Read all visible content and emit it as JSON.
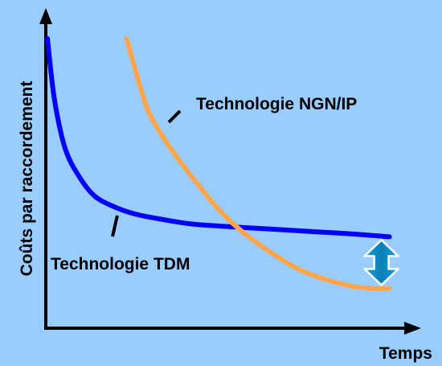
{
  "chart_data": {
    "type": "line",
    "title": "",
    "xlabel": "Temps",
    "ylabel": "Coûts par raccordement",
    "grid": false,
    "legend": "none",
    "series": [
      {
        "name": "Technologie TDM",
        "color": "#0000ff",
        "points": [
          [
            0.02,
            1.0
          ],
          [
            0.04,
            0.76
          ],
          [
            0.07,
            0.57
          ],
          [
            0.11,
            0.46
          ],
          [
            0.15,
            0.39
          ],
          [
            0.2,
            0.35
          ],
          [
            0.26,
            0.32
          ],
          [
            0.33,
            0.3
          ],
          [
            0.42,
            0.28
          ],
          [
            0.52,
            0.27
          ],
          [
            0.64,
            0.26
          ],
          [
            0.76,
            0.25
          ],
          [
            0.88,
            0.24
          ],
          [
            0.97,
            0.23
          ]
        ]
      },
      {
        "name": "Technologie NGN/IP",
        "color": "#ffa64d",
        "points": [
          [
            0.24,
            1.0
          ],
          [
            0.27,
            0.85
          ],
          [
            0.3,
            0.72
          ],
          [
            0.34,
            0.62
          ],
          [
            0.39,
            0.52
          ],
          [
            0.44,
            0.43
          ],
          [
            0.5,
            0.33
          ],
          [
            0.57,
            0.24
          ],
          [
            0.64,
            0.17
          ],
          [
            0.71,
            0.11
          ],
          [
            0.78,
            0.07
          ],
          [
            0.86,
            0.04
          ],
          [
            0.92,
            0.03
          ],
          [
            0.97,
            0.03
          ]
        ]
      }
    ],
    "annotations": {
      "gap_arrow": {
        "x": 0.97,
        "from": 0.23,
        "to": 0.03,
        "color": "#1a9fd9"
      }
    }
  }
}
